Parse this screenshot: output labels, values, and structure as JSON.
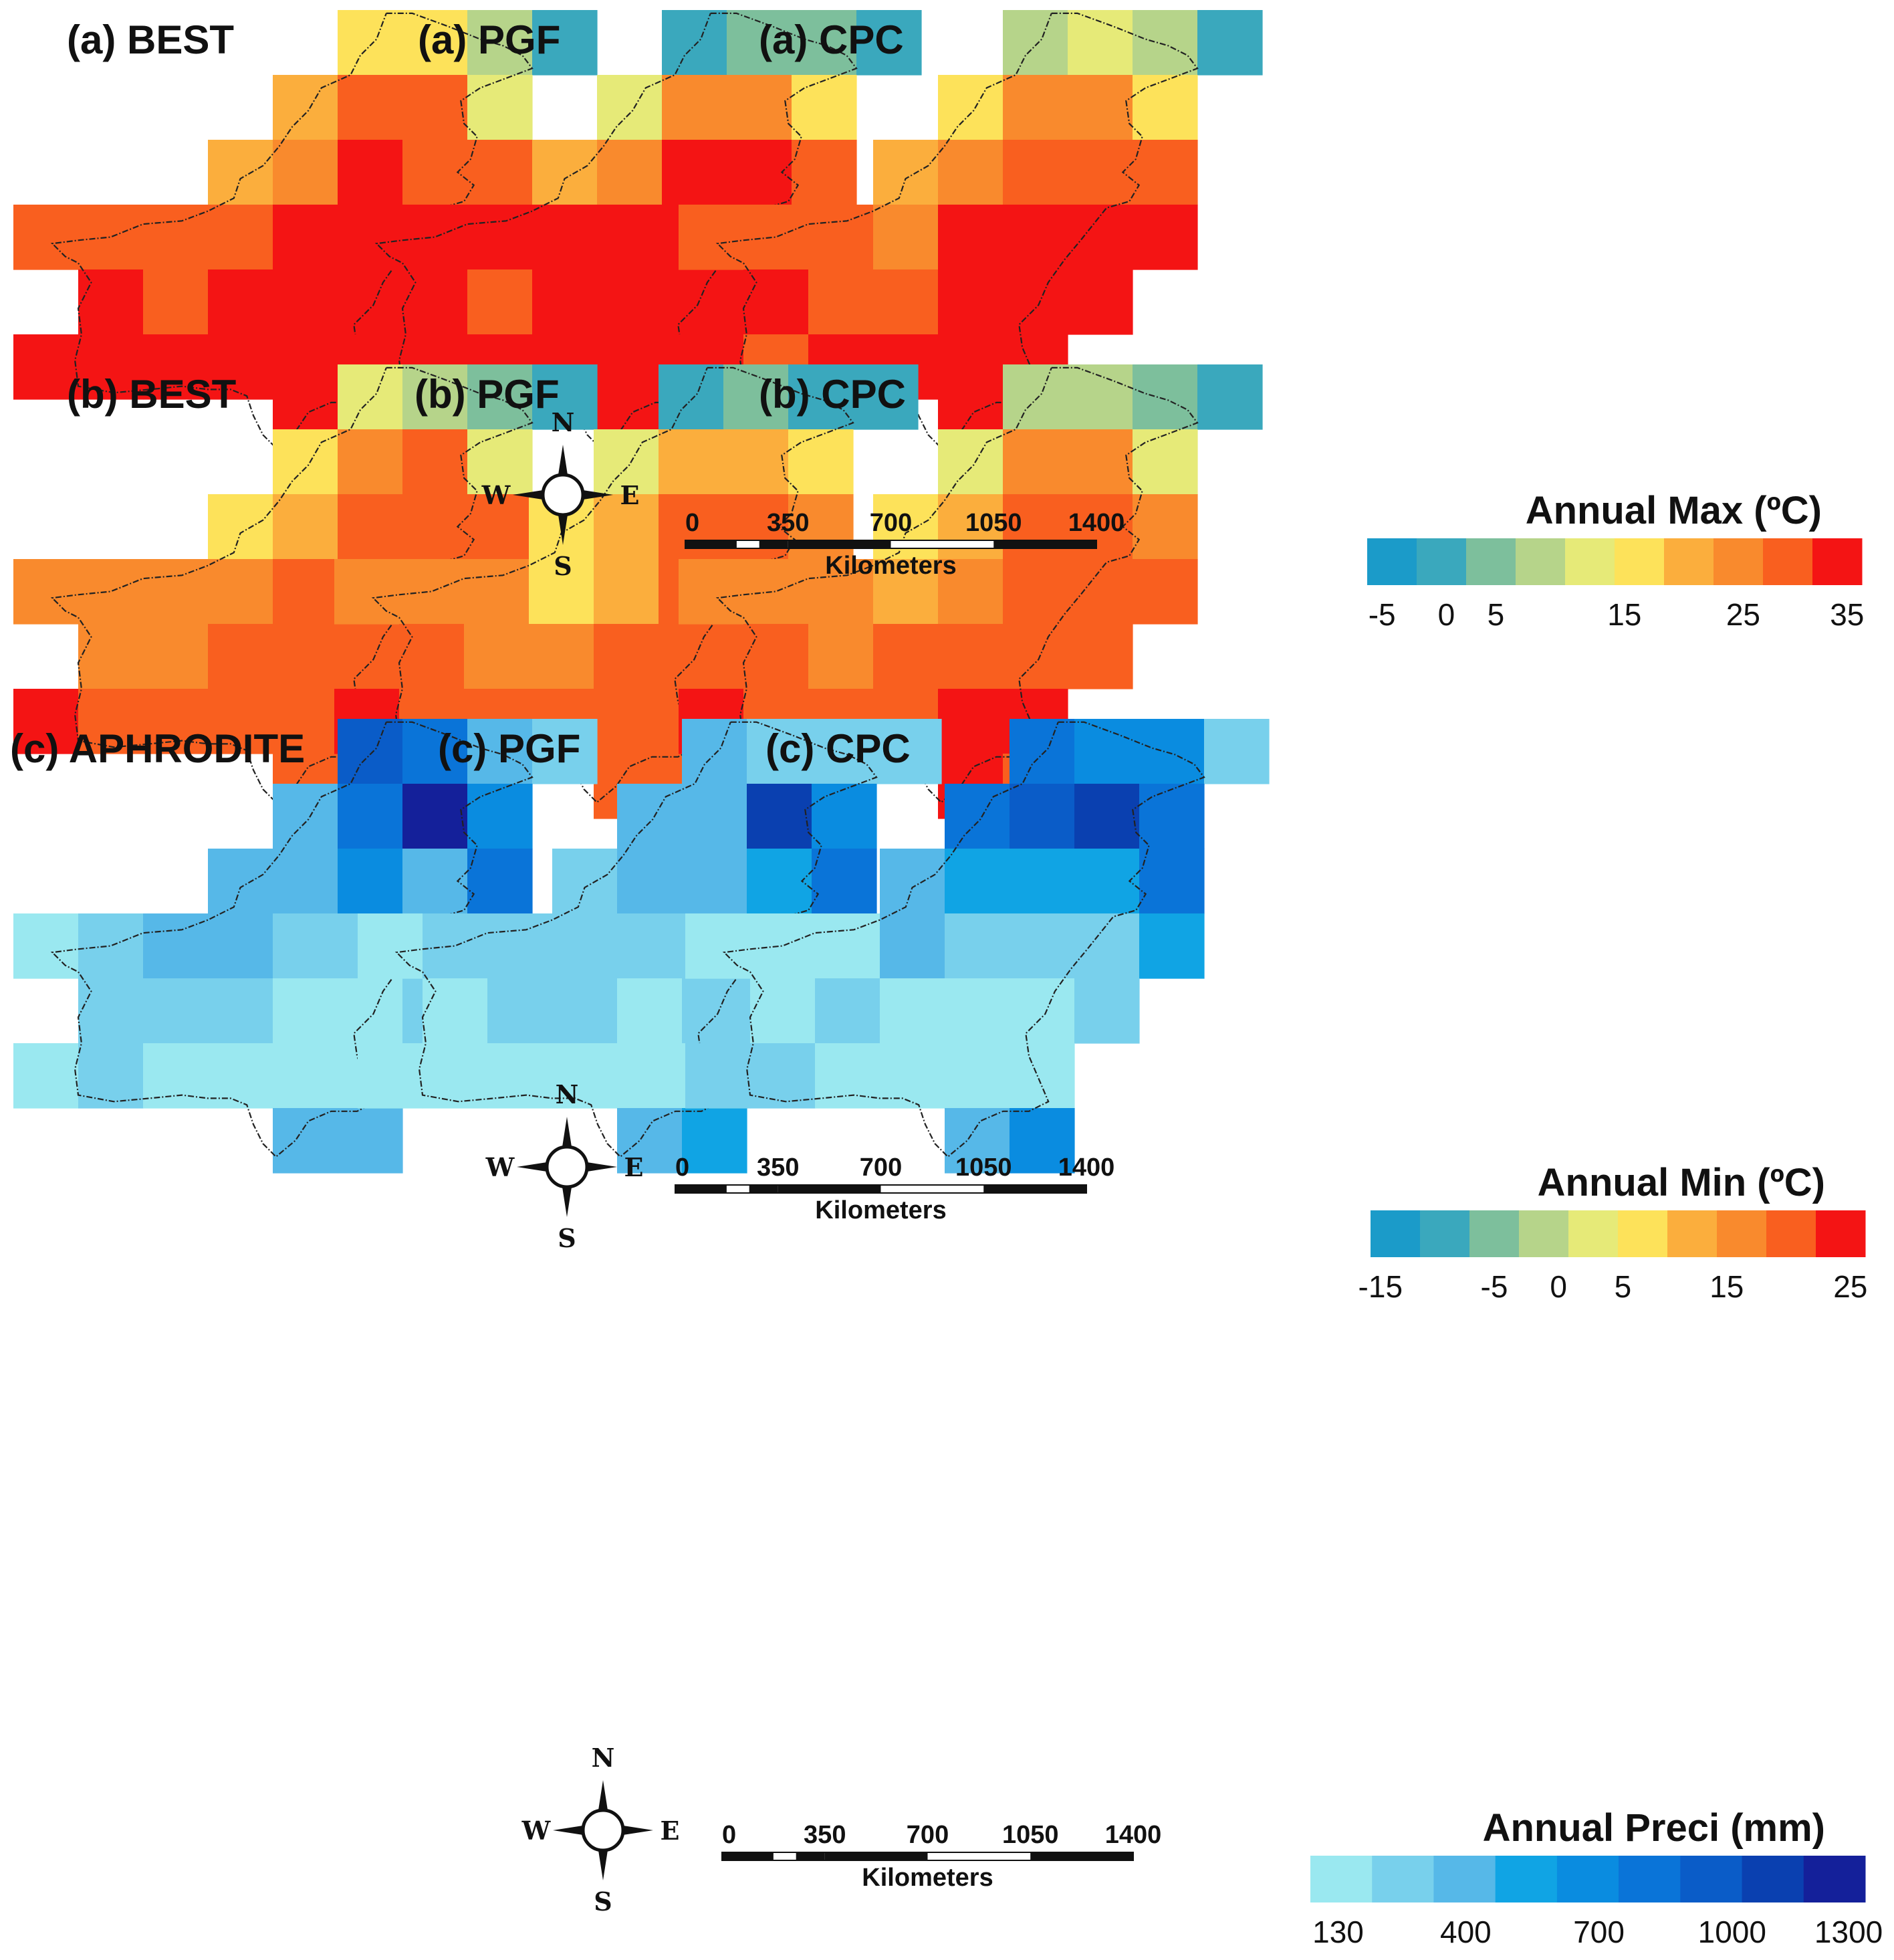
{
  "figure": {
    "rows": [
      {
        "id": "a",
        "panels": [
          {
            "title": "(a) BEST"
          },
          {
            "title": "(a) PGF"
          },
          {
            "title": "(a) CPC"
          }
        ],
        "legend": {
          "title": "Annual Max (ºC)",
          "colors": [
            "#1b9bc9",
            "#3aa8bd",
            "#7dbf9c",
            "#b6d48a",
            "#e6ea78",
            "#fde25a",
            "#fbae3d",
            "#f98a2d",
            "#f95f1f",
            "#f41414"
          ],
          "tick_labels": [
            "-5",
            "0",
            "5",
            "15",
            "25",
            "35"
          ]
        },
        "scalebar": {
          "ticks": [
            "0",
            "350",
            "700",
            "1050",
            "1400"
          ],
          "unit": "Kilometers"
        },
        "compass": {
          "n": "N",
          "e": "E",
          "s": "S",
          "w": "W"
        }
      },
      {
        "id": "b",
        "panels": [
          {
            "title": "(b) BEST"
          },
          {
            "title": "(b) PGF"
          },
          {
            "title": "(b) CPC"
          }
        ],
        "legend": {
          "title": "Annual Min (ºC)",
          "colors": [
            "#1b9bc9",
            "#3aa8bd",
            "#7dbf9c",
            "#b6d48a",
            "#e6ea78",
            "#fde25a",
            "#fbae3d",
            "#f98a2d",
            "#f95f1f",
            "#f41414"
          ],
          "tick_labels": [
            "-15",
            "-5",
            "0",
            "5",
            "15",
            "25"
          ]
        },
        "scalebar": {
          "ticks": [
            "0",
            "350",
            "700",
            "1050",
            "1400"
          ],
          "unit": "Kilometers"
        },
        "compass": {
          "n": "N",
          "e": "E",
          "s": "S",
          "w": "W"
        }
      },
      {
        "id": "c",
        "panels": [
          {
            "title": "(c) APHRODITE"
          },
          {
            "title": "(c) PGF"
          },
          {
            "title": "(c) CPC"
          }
        ],
        "legend": {
          "title": "Annual Preci (mm)",
          "colors": [
            "#9ae8f0",
            "#78d0ec",
            "#56b8e8",
            "#10a4e4",
            "#0a8ce0",
            "#0a74d8",
            "#0a5cc8",
            "#0a40b0",
            "#14209a"
          ],
          "tick_labels": [
            "130",
            "400",
            "700",
            "1000",
            "1300"
          ]
        },
        "scalebar": {
          "ticks": [
            "0",
            "350",
            "700",
            "1050",
            "1400"
          ],
          "unit": "Kilometers"
        },
        "compass": {
          "n": "N",
          "e": "E",
          "s": "S",
          "w": "W"
        }
      }
    ]
  }
}
